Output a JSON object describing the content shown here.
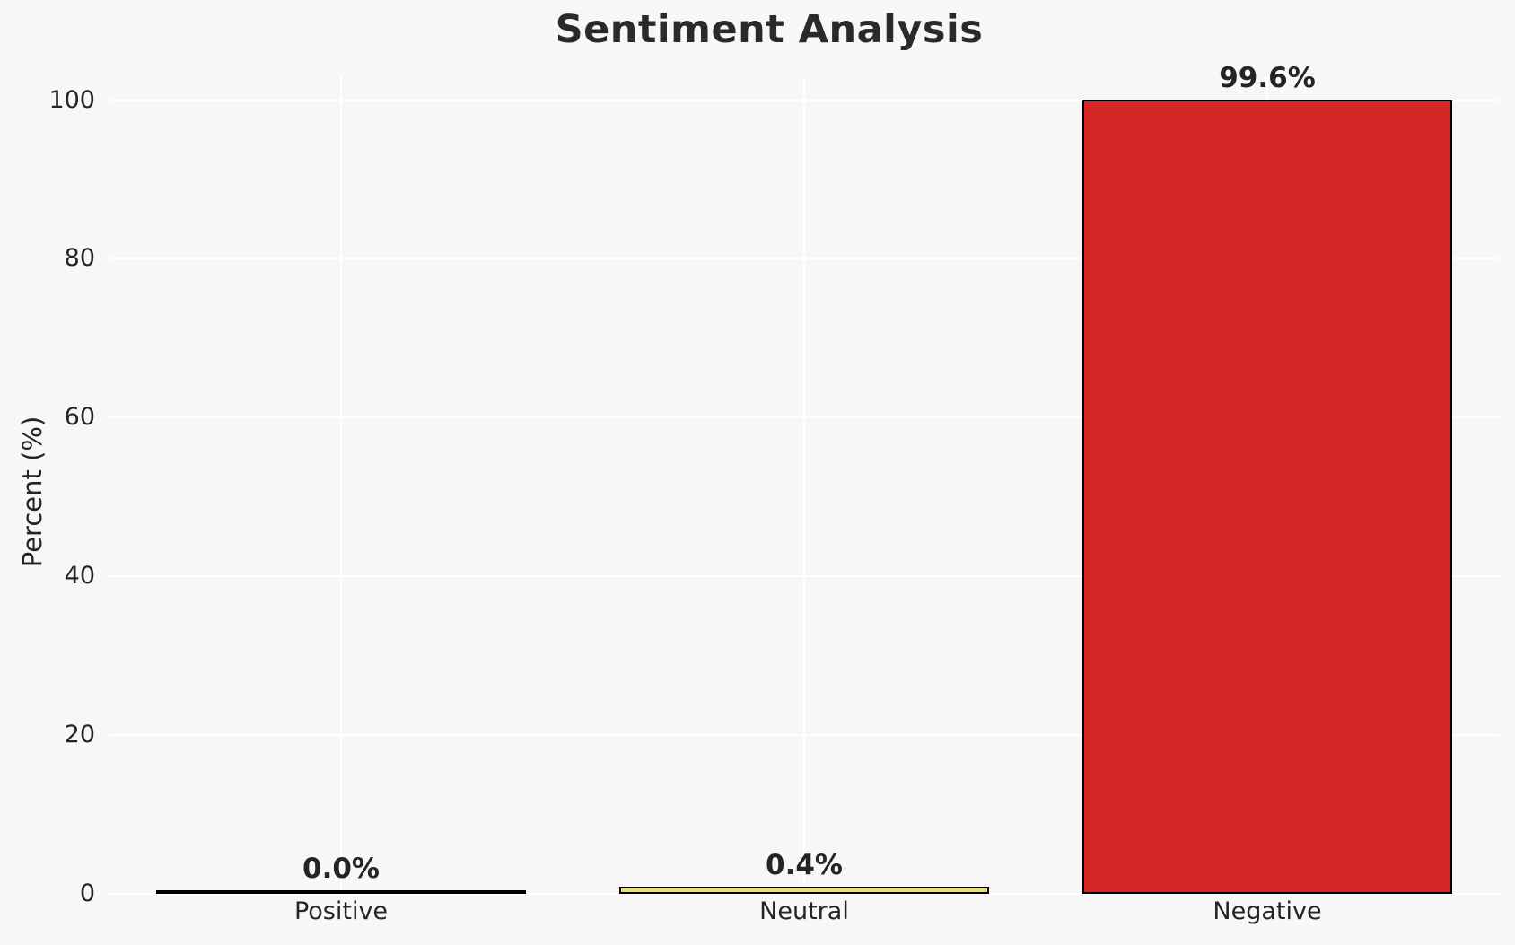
{
  "figure": {
    "background_color": "#f7f7f7",
    "text_color": "#242424",
    "gridline_color": "#ffffff"
  },
  "chart_data": {
    "type": "bar",
    "title": "Sentiment Analysis",
    "xlabel": "",
    "ylabel": "Percent (%)",
    "categories": [
      "Positive",
      "Neutral",
      "Negative"
    ],
    "values": [
      0.0,
      0.4,
      99.6
    ],
    "value_labels": [
      "0.0%",
      "0.4%",
      "99.6%"
    ],
    "bar_colors": [
      null,
      "#e9e06e",
      "#d62728"
    ],
    "bar_edge_color": "#000000",
    "bar_width_fraction": 0.8,
    "yticks": [
      0,
      20,
      40,
      60,
      80,
      100
    ],
    "ytick_labels": [
      "0",
      "20",
      "40",
      "60",
      "80",
      "100"
    ],
    "ylim": [
      0,
      103
    ],
    "grid": {
      "show": true,
      "horizontal": true,
      "vertical": true
    },
    "legend_position": "none"
  }
}
